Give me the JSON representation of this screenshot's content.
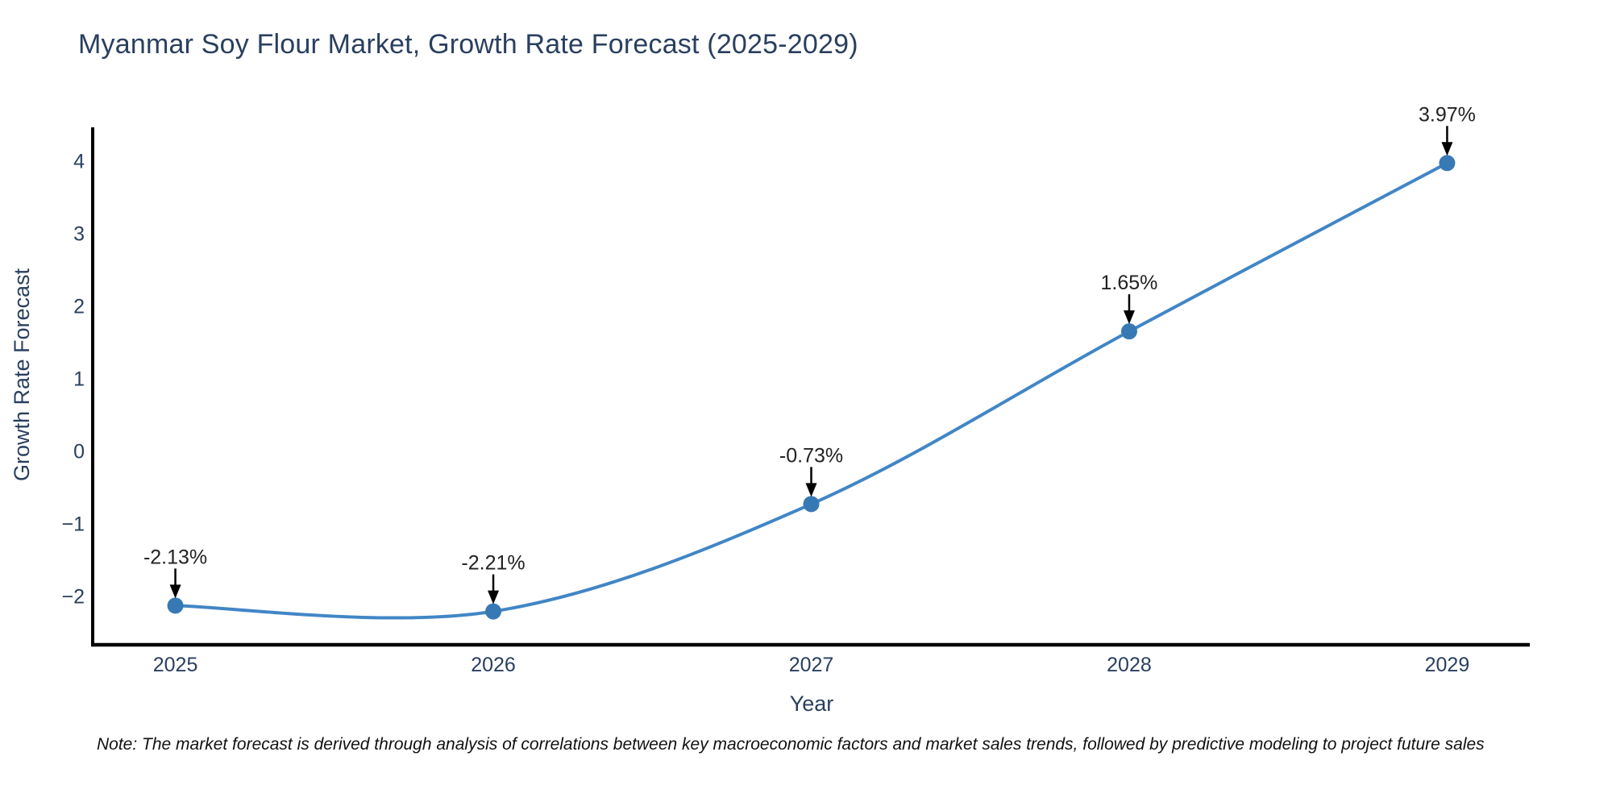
{
  "chart": {
    "title": "Myanmar Soy Flour Market, Growth Rate Forecast (2025-2029)",
    "ylabel": "Growth Rate Forecast",
    "xlabel": "Year",
    "note": "Note: The market forecast is derived through analysis of correlations between key macroeconomic factors and market sales trends, followed by predictive modeling to project future sales"
  },
  "chart_data": {
    "type": "line",
    "title": "Myanmar Soy Flour Market, Growth Rate Forecast (2025-2029)",
    "xlabel": "Year",
    "ylabel": "Growth Rate Forecast",
    "x": [
      2025,
      2026,
      2027,
      2028,
      2029
    ],
    "values": [
      -2.13,
      -2.21,
      -0.73,
      1.65,
      3.97
    ],
    "point_labels": [
      "-2.13%",
      "-2.21%",
      "-0.73%",
      "1.65%",
      "3.97%"
    ],
    "x_tick_labels": [
      "2025",
      "2026",
      "2027",
      "2028",
      "2029"
    ],
    "y_ticks": [
      4,
      3,
      2,
      1,
      0,
      -1,
      -2
    ],
    "y_tick_labels": [
      "4",
      "3",
      "2",
      "1",
      "0",
      "−1",
      "−2"
    ],
    "xlim": [
      2024.74,
      2029.26
    ],
    "ylim": [
      -2.67,
      4.44
    ],
    "grid": false,
    "legend": null,
    "smooth": true,
    "line_color": "#4186c6",
    "marker_color": "#3779b5",
    "arrow_color": "#000000"
  },
  "colors": {
    "title": "#2a3f5f",
    "tick": "#2a3f5f",
    "annotation": "#222222",
    "spine": "#000000",
    "background": "#ffffff"
  }
}
